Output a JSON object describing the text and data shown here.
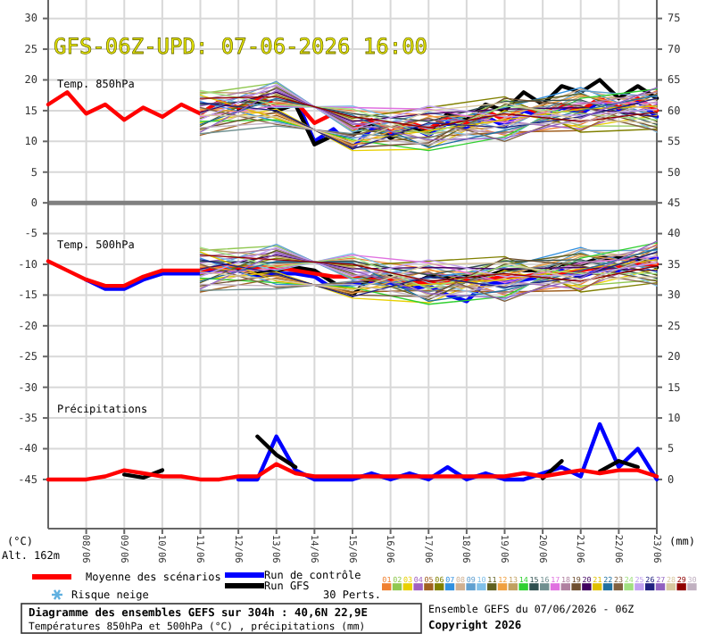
{
  "chart_data": {
    "type": "line",
    "title": "GFS-06Z-UPD: 07-06-2026 16:00",
    "ylabel": "(°C)",
    "y2label": "(mm)",
    "legend_title": "30 Perts.",
    "annotations": [
      "Temp. 850hPa",
      "Temp. 500hPa",
      "Précipitations",
      "Alt. 162m",
      "Risque neige",
      "Diagramme des ensembles GEFS sur 304h : 40,6N 22,9E",
      "Températures 850hPa et 500hPa (°C) , précipitations (mm)",
      "Ensemble GEFS du 07/06/2026 - 06Z",
      "Copyright 2026"
    ],
    "xlim": [
      "2026-06-07",
      "2026-06-23"
    ],
    "xticks": [
      {
        "value": "2026-06-08",
        "label": "08/06"
      },
      {
        "value": "2026-06-09",
        "label": "09/06"
      },
      {
        "value": "2026-06-10",
        "label": "10/06"
      },
      {
        "value": "2026-06-11",
        "label": "11/06"
      },
      {
        "value": "2026-06-12",
        "label": "12/06"
      },
      {
        "value": "2026-06-13",
        "label": "13/06"
      },
      {
        "value": "2026-06-14",
        "label": "14/06"
      },
      {
        "value": "2026-06-15",
        "label": "15/06"
      },
      {
        "value": "2026-06-16",
        "label": "16/06"
      },
      {
        "value": "2026-06-17",
        "label": "17/06"
      },
      {
        "value": "2026-06-18",
        "label": "18/06"
      },
      {
        "value": "2026-06-19",
        "label": "19/06"
      },
      {
        "value": "2026-06-20",
        "label": "20/06"
      },
      {
        "value": "2026-06-21",
        "label": "21/06"
      },
      {
        "value": "2026-06-22",
        "label": "22/06"
      },
      {
        "value": "2026-06-23",
        "label": "23/06"
      }
    ],
    "ylim": [
      -53,
      33
    ],
    "yticks": [
      -45,
      -40,
      -35,
      -30,
      -25,
      -20,
      -15,
      -10,
      -5,
      0,
      5,
      10,
      15,
      20,
      25,
      30
    ],
    "y2lim": [
      -8,
      78
    ],
    "y2ticks": [
      0,
      5,
      10,
      15,
      20,
      25,
      30,
      35,
      40,
      45,
      50,
      55,
      60,
      65,
      70,
      75
    ],
    "grid": true,
    "legend": "bottom",
    "ref_lines": [
      {
        "axis": "y",
        "value": 0,
        "color": "#808080"
      }
    ],
    "x": [
      "2026-06-07T00:00",
      "2026-06-07T12:00",
      "2026-06-08T00:00",
      "2026-06-08T12:00",
      "2026-06-09T00:00",
      "2026-06-09T12:00",
      "2026-06-10T00:00",
      "2026-06-10T12:00",
      "2026-06-11T00:00",
      "2026-06-11T12:00",
      "2026-06-12T00:00",
      "2026-06-12T12:00",
      "2026-06-13T00:00",
      "2026-06-13T12:00",
      "2026-06-14T00:00",
      "2026-06-14T12:00",
      "2026-06-15T00:00",
      "2026-06-15T12:00",
      "2026-06-16T00:00",
      "2026-06-16T12:00",
      "2026-06-17T00:00",
      "2026-06-17T12:00",
      "2026-06-18T00:00",
      "2026-06-18T12:00",
      "2026-06-19T00:00",
      "2026-06-19T12:00",
      "2026-06-20T00:00",
      "2026-06-20T12:00",
      "2026-06-21T00:00",
      "2026-06-21T12:00",
      "2026-06-22T00:00",
      "2026-06-22T12:00",
      "2026-06-23T00:00"
    ],
    "series": [
      {
        "name": "01",
        "color": "#f08030",
        "x": [
          "2026-06-11",
          "2026-06-13",
          "2026-06-15",
          "2026-06-17",
          "2026-06-19",
          "2026-06-21",
          "2026-06-23"
        ],
        "values": [
          15,
          16.25,
          15,
          14.25,
          11,
          12.75,
          18.25
        ]
      },
      {
        "name": "02",
        "color": "#90c850",
        "x": [
          "2026-06-11",
          "2026-06-13",
          "2026-06-15",
          "2026-06-17",
          "2026-06-19",
          "2026-06-21",
          "2026-06-23"
        ],
        "values": [
          17.75,
          19.5,
          11.75,
          11.5,
          16.75,
          12.5,
          12.5
        ]
      },
      {
        "name": "03",
        "color": "#e8d000",
        "x": [
          "2026-06-11",
          "2026-06-13",
          "2026-06-15",
          "2026-06-17",
          "2026-06-19",
          "2026-06-21",
          "2026-06-23"
        ],
        "values": [
          13,
          15.25,
          8.5,
          8.75,
          15,
          12.25,
          14.25
        ]
      },
      {
        "name": "04",
        "color": "#a060c0",
        "x": [
          "2026-06-11",
          "2026-06-13",
          "2026-06-15",
          "2026-06-17",
          "2026-06-19",
          "2026-06-21",
          "2026-06-23"
        ],
        "values": [
          15.75,
          18.5,
          12.75,
          13.5,
          13.25,
          12,
          16
        ]
      },
      {
        "name": "05",
        "color": "#a06020",
        "x": [
          "2026-06-11",
          "2026-06-13",
          "2026-06-15",
          "2026-06-17",
          "2026-06-19",
          "2026-06-21",
          "2026-06-23"
        ],
        "values": [
          11,
          14.25,
          9.5,
          10.75,
          11.5,
          11.75,
          17.75
        ]
      },
      {
        "name": "06",
        "color": "#808000",
        "x": [
          "2026-06-11",
          "2026-06-13",
          "2026-06-15",
          "2026-06-17",
          "2026-06-19",
          "2026-06-21",
          "2026-06-23"
        ],
        "values": [
          13.75,
          17.5,
          13.75,
          15.5,
          17.25,
          11.5,
          12
        ]
      },
      {
        "name": "07",
        "color": "#3090e0",
        "x": [
          "2026-06-11",
          "2026-06-13",
          "2026-06-15",
          "2026-06-17",
          "2026-06-19",
          "2026-06-21",
          "2026-06-23"
        ],
        "values": [
          16.5,
          13.25,
          10.5,
          12.75,
          15.5,
          18.75,
          13.75
        ]
      },
      {
        "name": "08",
        "color": "#d0b090",
        "x": [
          "2026-06-11",
          "2026-06-13",
          "2026-06-15",
          "2026-06-17",
          "2026-06-19",
          "2026-06-21",
          "2026-06-23"
        ],
        "values": [
          11.75,
          16.5,
          14.75,
          10,
          13.75,
          18.5,
          15.5
        ]
      },
      {
        "name": "09",
        "color": "#60a0d0",
        "x": [
          "2026-06-11",
          "2026-06-13",
          "2026-06-15",
          "2026-06-17",
          "2026-06-19",
          "2026-06-21",
          "2026-06-23"
        ],
        "values": [
          14.5,
          19.75,
          11.5,
          14.75,
          12,
          18.25,
          17.25
        ]
      },
      {
        "name": "10",
        "color": "#80c0e8",
        "x": [
          "2026-06-11",
          "2026-06-13",
          "2026-06-15",
          "2026-06-17",
          "2026-06-19",
          "2026-06-21",
          "2026-06-23"
        ],
        "values": [
          17.25,
          15.5,
          15.75,
          12,
          10.25,
          18,
          11.5
        ]
      },
      {
        "name": "11",
        "color": "#606020",
        "x": [
          "2026-06-11",
          "2026-06-13",
          "2026-06-15",
          "2026-06-17",
          "2026-06-19",
          "2026-06-21",
          "2026-06-23"
        ],
        "values": [
          12.5,
          18.75,
          12.5,
          9.25,
          16,
          17.75,
          13.25
        ]
      },
      {
        "name": "12",
        "color": "#f0a040",
        "x": [
          "2026-06-11",
          "2026-06-13",
          "2026-06-15",
          "2026-06-17",
          "2026-06-19",
          "2026-06-21",
          "2026-06-23"
        ],
        "values": [
          15.25,
          14.5,
          9.25,
          14,
          14.25,
          17.5,
          15
        ]
      },
      {
        "name": "13",
        "color": "#c0a060",
        "x": [
          "2026-06-11",
          "2026-06-13",
          "2026-06-15",
          "2026-06-17",
          "2026-06-19",
          "2026-06-21",
          "2026-06-23"
        ],
        "values": [
          18,
          17.75,
          13.5,
          11.25,
          12.5,
          17.25,
          16.75
        ]
      },
      {
        "name": "14",
        "color": "#30d030",
        "x": [
          "2026-06-11",
          "2026-06-13",
          "2026-06-15",
          "2026-06-17",
          "2026-06-19",
          "2026-06-21",
          "2026-06-23"
        ],
        "values": [
          13.25,
          13.5,
          10.25,
          8.5,
          10.75,
          17,
          18.5
        ]
      },
      {
        "name": "15",
        "color": "#305050",
        "x": [
          "2026-06-11",
          "2026-06-13",
          "2026-06-15",
          "2026-06-17",
          "2026-06-19",
          "2026-06-21",
          "2026-06-23"
        ],
        "values": [
          16,
          16.75,
          14.5,
          13.25,
          16.5,
          16.75,
          12.75
        ]
      },
      {
        "name": "16",
        "color": "#709090",
        "x": [
          "2026-06-11",
          "2026-06-13",
          "2026-06-15",
          "2026-06-17",
          "2026-06-19",
          "2026-06-21",
          "2026-06-23"
        ],
        "values": [
          11.25,
          12.5,
          11.25,
          10.5,
          14.75,
          16.5,
          14.5
        ]
      },
      {
        "name": "17",
        "color": "#e070e0",
        "x": [
          "2026-06-11",
          "2026-06-13",
          "2026-06-15",
          "2026-06-17",
          "2026-06-19",
          "2026-06-21",
          "2026-06-23"
        ],
        "values": [
          14,
          15.75,
          15.5,
          15.25,
          13,
          16.25,
          16.25
        ]
      },
      {
        "name": "18",
        "color": "#b080a0",
        "x": [
          "2026-06-11",
          "2026-06-13",
          "2026-06-15",
          "2026-06-17",
          "2026-06-19",
          "2026-06-21",
          "2026-06-23"
        ],
        "values": [
          16.75,
          19,
          12.25,
          12.5,
          11.25,
          16,
          18
        ]
      },
      {
        "name": "19",
        "color": "#705030",
        "x": [
          "2026-06-11",
          "2026-06-13",
          "2026-06-15",
          "2026-06-17",
          "2026-06-19",
          "2026-06-21",
          "2026-06-23"
        ],
        "values": [
          12,
          14.75,
          9,
          9.75,
          17,
          15.75,
          12.25
        ]
      },
      {
        "name": "20",
        "color": "#400060",
        "x": [
          "2026-06-11",
          "2026-06-13",
          "2026-06-15",
          "2026-06-17",
          "2026-06-19",
          "2026-06-21",
          "2026-06-23"
        ],
        "values": [
          14.75,
          18,
          13.25,
          14.5,
          15.25,
          15.5,
          14
        ]
      },
      {
        "name": "21",
        "color": "#e0c000",
        "x": [
          "2026-06-11",
          "2026-06-13",
          "2026-06-15",
          "2026-06-17",
          "2026-06-19",
          "2026-06-21",
          "2026-06-23"
        ],
        "values": [
          17.5,
          13.75,
          10,
          11.75,
          13.5,
          15.25,
          15.75
        ]
      },
      {
        "name": "22",
        "color": "#2070a0",
        "x": [
          "2026-06-11",
          "2026-06-13",
          "2026-06-15",
          "2026-06-17",
          "2026-06-19",
          "2026-06-21",
          "2026-06-23"
        ],
        "values": [
          12.75,
          17,
          14.25,
          9,
          11.75,
          15,
          17.5
        ]
      },
      {
        "name": "23",
        "color": "#806040",
        "x": [
          "2026-06-11",
          "2026-06-13",
          "2026-06-15",
          "2026-06-17",
          "2026-06-19",
          "2026-06-21",
          "2026-06-23"
        ],
        "values": [
          15.5,
          12.75,
          11,
          13.75,
          10,
          14.75,
          11.75
        ]
      },
      {
        "name": "24",
        "color": "#a0e080",
        "x": [
          "2026-06-11",
          "2026-06-13",
          "2026-06-15",
          "2026-06-17",
          "2026-06-19",
          "2026-06-21",
          "2026-06-23"
        ],
        "values": [
          18.25,
          16,
          15.25,
          11,
          15.75,
          14.5,
          13.5
        ]
      },
      {
        "name": "25",
        "color": "#c0a0f0",
        "x": [
          "2026-06-11",
          "2026-06-13",
          "2026-06-15",
          "2026-06-17",
          "2026-06-19",
          "2026-06-21",
          "2026-06-23"
        ],
        "values": [
          13.5,
          19.25,
          12,
          15.75,
          14,
          14.25,
          15.25
        ]
      },
      {
        "name": "26",
        "color": "#202080",
        "x": [
          "2026-06-11",
          "2026-06-13",
          "2026-06-15",
          "2026-06-17",
          "2026-06-19",
          "2026-06-21",
          "2026-06-23"
        ],
        "values": [
          16.25,
          15,
          8.75,
          13,
          12.25,
          14,
          17
        ]
      },
      {
        "name": "27",
        "color": "#9060c0",
        "x": [
          "2026-06-11",
          "2026-06-13",
          "2026-06-15",
          "2026-06-17",
          "2026-06-19",
          "2026-06-21",
          "2026-06-23"
        ],
        "values": [
          11.5,
          18.25,
          13,
          10.25,
          10.5,
          13.75,
          18.75
        ]
      },
      {
        "name": "28",
        "color": "#d8c8a0",
        "x": [
          "2026-06-11",
          "2026-06-13",
          "2026-06-15",
          "2026-06-17",
          "2026-06-19",
          "2026-06-21",
          "2026-06-23"
        ],
        "values": [
          14.25,
          14,
          9.75,
          15,
          16.25,
          13.5,
          13
        ]
      },
      {
        "name": "29",
        "color": "#900000",
        "x": [
          "2026-06-11",
          "2026-06-13",
          "2026-06-15",
          "2026-06-17",
          "2026-06-19",
          "2026-06-21",
          "2026-06-23"
        ],
        "values": [
          17,
          17.25,
          14,
          12.25,
          14.5,
          13.25,
          14.75
        ]
      },
      {
        "name": "30",
        "color": "#c0b0c0",
        "x": [
          "2026-06-11",
          "2026-06-13",
          "2026-06-15",
          "2026-06-17",
          "2026-06-19",
          "2026-06-21",
          "2026-06-23"
        ],
        "values": [
          12.25,
          13,
          10.75,
          9.5,
          12.75,
          13,
          16.5
        ]
      },
      {
        "color": "#f08030",
        "x": [
          "2026-06-11",
          "2026-06-13",
          "2026-06-15",
          "2026-06-17",
          "2026-06-19",
          "2026-06-21",
          "2026-06-23"
        ],
        "values": [
          -10.5,
          -10.25,
          -9,
          -10.75,
          -15,
          -13.25,
          -6.75
        ]
      },
      {
        "color": "#90c850",
        "x": [
          "2026-06-11",
          "2026-06-13",
          "2026-06-15",
          "2026-06-17",
          "2026-06-19",
          "2026-06-21",
          "2026-06-23"
        ],
        "values": [
          -7.75,
          -7,
          -12.25,
          -13.5,
          -9.25,
          -13.5,
          -12.5
        ]
      },
      {
        "color": "#e8d000",
        "x": [
          "2026-06-11",
          "2026-06-13",
          "2026-06-15",
          "2026-06-17",
          "2026-06-19",
          "2026-06-21",
          "2026-06-23"
        ],
        "values": [
          -12.5,
          -11.25,
          -15.5,
          -16.25,
          -11,
          -13.75,
          -10.75
        ]
      },
      {
        "color": "#a060c0",
        "x": [
          "2026-06-11",
          "2026-06-13",
          "2026-06-15",
          "2026-06-17",
          "2026-06-19",
          "2026-06-21",
          "2026-06-23"
        ],
        "values": [
          -9.75,
          -8,
          -11.25,
          -11.5,
          -12.75,
          -14,
          -9
        ]
      },
      {
        "color": "#a06020",
        "x": [
          "2026-06-11",
          "2026-06-13",
          "2026-06-15",
          "2026-06-17",
          "2026-06-19",
          "2026-06-21",
          "2026-06-23"
        ],
        "values": [
          -14.5,
          -12.25,
          -14.5,
          -14.25,
          -14.5,
          -14.25,
          -7.25
        ]
      },
      {
        "color": "#808000",
        "x": [
          "2026-06-11",
          "2026-06-13",
          "2026-06-15",
          "2026-06-17",
          "2026-06-19",
          "2026-06-21",
          "2026-06-23"
        ],
        "values": [
          -11.75,
          -9,
          -10.25,
          -9.5,
          -8.75,
          -14.5,
          -13
        ]
      },
      {
        "color": "#3090e0",
        "x": [
          "2026-06-11",
          "2026-06-13",
          "2026-06-15",
          "2026-06-17",
          "2026-06-19",
          "2026-06-21",
          "2026-06-23"
        ],
        "values": [
          -9,
          -13.25,
          -13.5,
          -12.25,
          -10.5,
          -7.25,
          -11.25
        ]
      },
      {
        "color": "#d0b090",
        "x": [
          "2026-06-11",
          "2026-06-13",
          "2026-06-15",
          "2026-06-17",
          "2026-06-19",
          "2026-06-21",
          "2026-06-23"
        ],
        "values": [
          -13.75,
          -10,
          -9.25,
          -15,
          -12.25,
          -7.5,
          -9.5
        ]
      },
      {
        "color": "#60a0d0",
        "x": [
          "2026-06-11",
          "2026-06-13",
          "2026-06-15",
          "2026-06-17",
          "2026-06-19",
          "2026-06-21",
          "2026-06-23"
        ],
        "values": [
          -11,
          -6.75,
          -12.5,
          -10.25,
          -14,
          -7.75,
          -7.75
        ]
      },
      {
        "color": "#80c0e8",
        "x": [
          "2026-06-11",
          "2026-06-13",
          "2026-06-15",
          "2026-06-17",
          "2026-06-19",
          "2026-06-21",
          "2026-06-23"
        ],
        "values": [
          -8.25,
          -11,
          -8.25,
          -13,
          -15.75,
          -8,
          -13.5
        ]
      },
      {
        "color": "#606020",
        "x": [
          "2026-06-11",
          "2026-06-13",
          "2026-06-15",
          "2026-06-17",
          "2026-06-19",
          "2026-06-21",
          "2026-06-23"
        ],
        "values": [
          -13,
          -7.75,
          -11.5,
          -15.75,
          -10,
          -8.25,
          -11.75
        ]
      },
      {
        "color": "#f0a040",
        "x": [
          "2026-06-11",
          "2026-06-13",
          "2026-06-15",
          "2026-06-17",
          "2026-06-19",
          "2026-06-21",
          "2026-06-23"
        ],
        "values": [
          -10.25,
          -12,
          -14.75,
          -11,
          -11.75,
          -8.5,
          -10
        ]
      },
      {
        "color": "#c0a060",
        "x": [
          "2026-06-11",
          "2026-06-13",
          "2026-06-15",
          "2026-06-17",
          "2026-06-19",
          "2026-06-21",
          "2026-06-23"
        ],
        "values": [
          -7.5,
          -8.75,
          -10.5,
          -13.75,
          -13.5,
          -8.75,
          -8.25
        ]
      },
      {
        "color": "#30d030",
        "x": [
          "2026-06-11",
          "2026-06-13",
          "2026-06-15",
          "2026-06-17",
          "2026-06-19",
          "2026-06-21",
          "2026-06-23"
        ],
        "values": [
          -12.25,
          -13,
          -13.75,
          -16.5,
          -15.25,
          -9,
          -6.5
        ]
      },
      {
        "color": "#305050",
        "x": [
          "2026-06-11",
          "2026-06-13",
          "2026-06-15",
          "2026-06-17",
          "2026-06-19",
          "2026-06-21",
          "2026-06-23"
        ],
        "values": [
          -9.5,
          -9.75,
          -9.5,
          -11.75,
          -9.5,
          -9.25,
          -12.25
        ]
      },
      {
        "color": "#709090",
        "x": [
          "2026-06-11",
          "2026-06-13",
          "2026-06-15",
          "2026-06-17",
          "2026-06-19",
          "2026-06-21",
          "2026-06-23"
        ],
        "values": [
          -14.25,
          -14,
          -12.75,
          -14.5,
          -11.25,
          -9.5,
          -10.5
        ]
      },
      {
        "color": "#e070e0",
        "x": [
          "2026-06-11",
          "2026-06-13",
          "2026-06-15",
          "2026-06-17",
          "2026-06-19",
          "2026-06-21",
          "2026-06-23"
        ],
        "values": [
          -11.5,
          -10.75,
          -8.5,
          -9.75,
          -13,
          -9.75,
          -8.75
        ]
      },
      {
        "color": "#b080a0",
        "x": [
          "2026-06-11",
          "2026-06-13",
          "2026-06-15",
          "2026-06-17",
          "2026-06-19",
          "2026-06-21",
          "2026-06-23"
        ],
        "values": [
          -8.75,
          -7.5,
          -11.75,
          -12.5,
          -14.75,
          -10,
          -7
        ]
      },
      {
        "color": "#705030",
        "x": [
          "2026-06-11",
          "2026-06-13",
          "2026-06-15",
          "2026-06-17",
          "2026-06-19",
          "2026-06-21",
          "2026-06-23"
        ],
        "values": [
          -13.5,
          -11.75,
          -15,
          -15.25,
          -9,
          -10.25,
          -12.75
        ]
      },
      {
        "color": "#400060",
        "x": [
          "2026-06-11",
          "2026-06-13",
          "2026-06-15",
          "2026-06-17",
          "2026-06-19",
          "2026-06-21",
          "2026-06-23"
        ],
        "values": [
          -10.75,
          -8.5,
          -10.75,
          -10.5,
          -10.75,
          -10.5,
          -11
        ]
      },
      {
        "color": "#e0c000",
        "x": [
          "2026-06-11",
          "2026-06-13",
          "2026-06-15",
          "2026-06-17",
          "2026-06-19",
          "2026-06-21",
          "2026-06-23"
        ],
        "values": [
          -8,
          -12.75,
          -14,
          -13.25,
          -12.5,
          -10.75,
          -9.25
        ]
      },
      {
        "color": "#2070a0",
        "x": [
          "2026-06-11",
          "2026-06-13",
          "2026-06-15",
          "2026-06-17",
          "2026-06-19",
          "2026-06-21",
          "2026-06-23"
        ],
        "values": [
          -12.75,
          -9.5,
          -9.75,
          -16,
          -14.25,
          -11,
          -7.5
        ]
      },
      {
        "color": "#806040",
        "x": [
          "2026-06-11",
          "2026-06-13",
          "2026-06-15",
          "2026-06-17",
          "2026-06-19",
          "2026-06-21",
          "2026-06-23"
        ],
        "values": [
          -10,
          -13.75,
          -13,
          -11.25,
          -16,
          -11.25,
          -13.25
        ]
      },
      {
        "color": "#a0e080",
        "x": [
          "2026-06-11",
          "2026-06-13",
          "2026-06-15",
          "2026-06-17",
          "2026-06-19",
          "2026-06-21",
          "2026-06-23"
        ],
        "values": [
          -7.25,
          -10.5,
          -8.75,
          -14,
          -10.25,
          -11.5,
          -11.5
        ]
      },
      {
        "color": "#c0a0f0",
        "x": [
          "2026-06-11",
          "2026-06-13",
          "2026-06-15",
          "2026-06-17",
          "2026-06-19",
          "2026-06-21",
          "2026-06-23"
        ],
        "values": [
          -12,
          -7.25,
          -12,
          -9.25,
          -12,
          -11.75,
          -9.75
        ]
      },
      {
        "color": "#202080",
        "x": [
          "2026-06-11",
          "2026-06-13",
          "2026-06-15",
          "2026-06-17",
          "2026-06-19",
          "2026-06-21",
          "2026-06-23"
        ],
        "values": [
          -9.25,
          -11.5,
          -15.25,
          -12,
          -13.75,
          -12,
          -8
        ]
      },
      {
        "color": "#9060c0",
        "x": [
          "2026-06-11",
          "2026-06-13",
          "2026-06-15",
          "2026-06-17",
          "2026-06-19",
          "2026-06-21",
          "2026-06-23"
        ],
        "values": [
          -14,
          -8.25,
          -11,
          -14.75,
          -15.5,
          -12.25,
          -6.25
        ]
      },
      {
        "color": "#d8c8a0",
        "x": [
          "2026-06-11",
          "2026-06-13",
          "2026-06-15",
          "2026-06-17",
          "2026-06-19",
          "2026-06-21",
          "2026-06-23"
        ],
        "values": [
          -11.25,
          -12.5,
          -14.25,
          -10,
          -9.75,
          -12.5,
          -12
        ]
      },
      {
        "color": "#900000",
        "x": [
          "2026-06-11",
          "2026-06-13",
          "2026-06-15",
          "2026-06-17",
          "2026-06-19",
          "2026-06-21",
          "2026-06-23"
        ],
        "values": [
          -8.5,
          -9.25,
          -10,
          -12.75,
          -11.5,
          -12.75,
          -10.25
        ]
      },
      {
        "color": "#c0b0c0",
        "x": [
          "2026-06-11",
          "2026-06-13",
          "2026-06-15",
          "2026-06-17",
          "2026-06-19",
          "2026-06-21",
          "2026-06-23"
        ],
        "values": [
          -13.25,
          -13.5,
          -13.25,
          -15.5,
          -13.25,
          -13,
          -8.5
        ]
      },
      {
        "name": "Run de contrôle",
        "color": "#0000ff",
        "values": [
          null,
          null,
          null,
          null,
          null,
          null,
          null,
          null,
          null,
          null,
          null,
          null,
          15.5,
          17,
          10,
          12,
          9,
          12,
          11,
          12.5,
          11,
          13,
          12,
          14,
          12.5,
          15,
          14,
          15.5,
          14.5,
          16.5,
          15,
          16.5,
          14
        ]
      },
      {
        "name": "Run GFS",
        "color": "#000000",
        "values": [
          null,
          null,
          null,
          null,
          null,
          null,
          null,
          null,
          null,
          null,
          15,
          16.5,
          15,
          16,
          9.5,
          11,
          11,
          13,
          10.5,
          12,
          11.5,
          14.5,
          13.5,
          16,
          15,
          18,
          16,
          19,
          18,
          20,
          17,
          19,
          17
        ]
      },
      {
        "name": "Moyenne des scénarios",
        "color": "#ff0000",
        "values": [
          16,
          18,
          14.5,
          16,
          13.5,
          15.5,
          14,
          16,
          14.5,
          16.5,
          15.5,
          17,
          16,
          16.5,
          13,
          14.5,
          12,
          13.5,
          11.5,
          13,
          12,
          14,
          13,
          15,
          13.5,
          15.5,
          14.5,
          16,
          15,
          17,
          15.5,
          17,
          15
        ]
      },
      {
        "color": "#0000ff",
        "values": [
          null,
          null,
          -12.5,
          -14,
          -14,
          -12.5,
          -11.5,
          -11.5,
          -11.5,
          -11,
          -11,
          -12,
          -11.5,
          -11.5,
          -12,
          -14,
          -13,
          -13,
          -13,
          -14,
          -13.5,
          -15,
          -16,
          -13,
          -13,
          -12.5,
          -12,
          -11,
          -12,
          -11,
          -11,
          -9.5,
          -9
        ]
      },
      {
        "color": "#000000",
        "values": [
          null,
          null,
          null,
          null,
          null,
          null,
          null,
          null,
          null,
          null,
          -11,
          -11.5,
          -11,
          -10.5,
          -11,
          -13,
          -15,
          -12,
          -12,
          -13.5,
          -12,
          -12,
          -12,
          -12,
          -11,
          -11,
          -11,
          -10,
          -10,
          -9,
          -9,
          -9,
          -10.5
        ]
      },
      {
        "color": "#ff0000",
        "values": [
          -9.5,
          -11,
          -12.5,
          -13.5,
          -13.5,
          -12,
          -11,
          -11,
          -11,
          -10.5,
          -10.5,
          -10.5,
          -10.5,
          -11,
          -11.5,
          -12,
          -12,
          -12.5,
          -12.5,
          -13,
          -13,
          -13,
          -12.5,
          -12.5,
          -12,
          -12,
          -11.5,
          -11.5,
          -11,
          -10.5,
          -10.5,
          -10,
          -10
        ]
      },
      {
        "color": "#0000ff",
        "axis": "y2",
        "values": [
          null,
          null,
          null,
          null,
          null,
          null,
          null,
          null,
          null,
          null,
          0,
          0,
          7,
          1.5,
          0,
          0,
          0,
          1,
          0,
          1,
          0,
          2,
          0,
          1,
          0,
          0,
          1,
          2,
          0.5,
          9,
          2,
          5,
          0
        ]
      },
      {
        "color": "#000000",
        "axis": "y2",
        "values": [
          null,
          null,
          null,
          null,
          0.8,
          0.3,
          1.5,
          null,
          null,
          null,
          null,
          7,
          4,
          2,
          null,
          null,
          null,
          null,
          null,
          null,
          null,
          null,
          null,
          null,
          null,
          null,
          0.2,
          3,
          null,
          1.3,
          3,
          2,
          null
        ]
      },
      {
        "color": "#ff0000",
        "axis": "y2",
        "values": [
          0,
          0,
          0,
          0.5,
          1.5,
          1,
          0.5,
          0.5,
          0,
          0,
          0.5,
          0.5,
          2.5,
          1,
          0.5,
          0.5,
          0.5,
          0.5,
          0.5,
          0.5,
          0.5,
          0.5,
          0.5,
          0.5,
          0.5,
          1,
          0.5,
          1,
          1.5,
          1,
          1.5,
          1.5,
          0.5
        ]
      }
    ]
  }
}
